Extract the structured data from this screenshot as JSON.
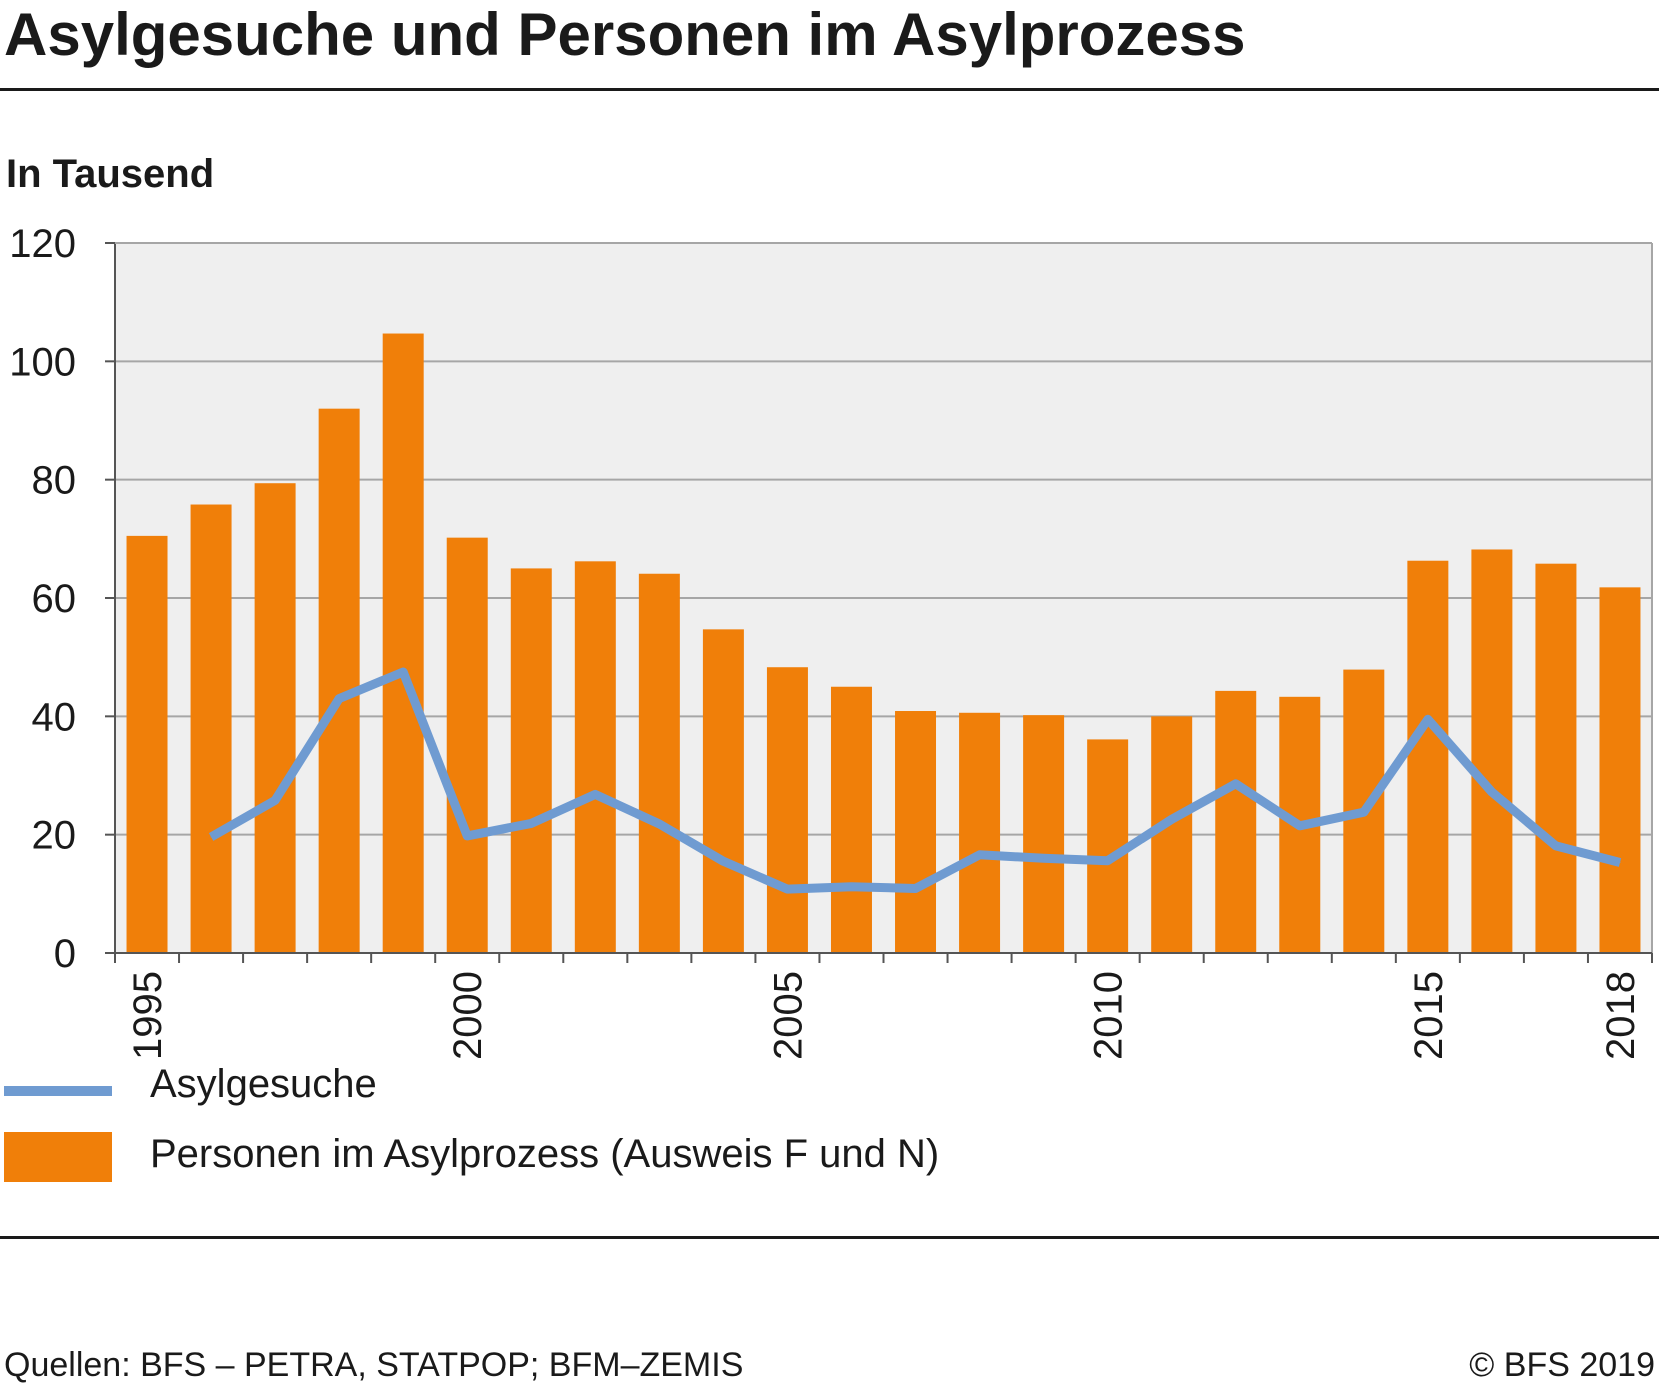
{
  "title": "Asylgesuche und Personen im Asylprozess",
  "unit_label": "In Tausend",
  "legend": {
    "line_label": "Asylgesuche",
    "bar_label": "Personen im Asylprozess (Ausweis F und N)"
  },
  "footer": {
    "source": "Quellen: BFS – PETRA, STATPOP; BFM–ZEMIS",
    "copyright": "© BFS 2019"
  },
  "colors": {
    "bar": "#f07f09",
    "line": "#6f9bd1",
    "plot_bg": "#efefef",
    "grid": "#a6a6a6",
    "axis": "#555555"
  },
  "chart_data": {
    "type": "bar",
    "categories": [
      "1995",
      "1996",
      "1997",
      "1998",
      "1999",
      "2000",
      "2001",
      "2002",
      "2003",
      "2004",
      "2005",
      "2006",
      "2007",
      "2008",
      "2009",
      "2010",
      "2011",
      "2012",
      "2013",
      "2014",
      "2015",
      "2016",
      "2017",
      "2018"
    ],
    "x_tick_labels": [
      "1995",
      "2000",
      "2005",
      "2010",
      "2015",
      "2018"
    ],
    "y_ticks": [
      0,
      20,
      40,
      60,
      80,
      100,
      120
    ],
    "ylim": [
      0,
      120
    ],
    "grid": true,
    "legend_position": "bottom",
    "series": [
      {
        "name": "Personen im Asylprozess (Ausweis F und N)",
        "type": "bar",
        "values": [
          70.5,
          75.8,
          79.4,
          92.0,
          104.7,
          70.2,
          65.0,
          66.2,
          64.1,
          54.7,
          48.3,
          45.0,
          40.9,
          40.6,
          40.2,
          36.1,
          40.0,
          44.3,
          43.3,
          47.9,
          66.3,
          68.2,
          65.8,
          61.8
        ]
      },
      {
        "name": "Asylgesuche",
        "type": "line",
        "values": [
          null,
          19.6,
          25.8,
          43.0,
          47.5,
          19.8,
          21.9,
          26.8,
          21.8,
          15.5,
          10.8,
          11.2,
          10.9,
          16.6,
          16.0,
          15.6,
          22.6,
          28.6,
          21.5,
          23.8,
          39.5,
          27.2,
          18.1,
          15.3
        ]
      }
    ]
  }
}
